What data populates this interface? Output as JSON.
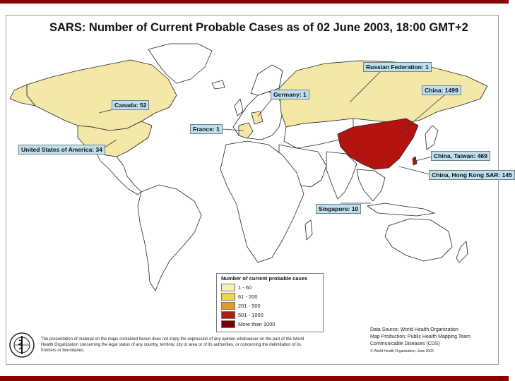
{
  "title": "SARS: Number of Current Probable Cases as of 02 June 2003, 18:00 GMT+2",
  "callouts": [
    {
      "name": "callout-russia",
      "label": "Russian Federation: 1"
    },
    {
      "name": "callout-china",
      "label": "China: 1499"
    },
    {
      "name": "callout-germany",
      "label": "Germany: 1"
    },
    {
      "name": "callout-canada",
      "label": "Canada: 52"
    },
    {
      "name": "callout-france",
      "label": "France: 1"
    },
    {
      "name": "callout-usa",
      "label": "United States of America: 34"
    },
    {
      "name": "callout-taiwan",
      "label": "China, Taiwan: 469"
    },
    {
      "name": "callout-hongkong",
      "label": "China, Hong Kong SAR: 145"
    },
    {
      "name": "callout-singapore",
      "label": "Singapore: 10"
    }
  ],
  "legend": {
    "title": "Number of current probable cases",
    "items": [
      {
        "label": "1 - 60",
        "color": "#f7f0b4"
      },
      {
        "label": "61 - 200",
        "color": "#f0d44a"
      },
      {
        "label": "201 - 500",
        "color": "#e09a2a"
      },
      {
        "label": "501 - 1000",
        "color": "#a82010"
      },
      {
        "label": "More than 1000",
        "color": "#7a0000"
      }
    ]
  },
  "colors": {
    "affected": "#f4e8a8",
    "china": "#b3140f",
    "land": "#ffffff",
    "ocean": "#ffffff",
    "band": "#8b0000"
  },
  "disclaimer": "The presentation of material on the maps contained herein does not imply the expression of any opinion whatsoever on the part of the World Health Organization concerning the legal status of any country, territory, city or area or of its authorities, or concerning the delimitation of its frontiers or boundaries.",
  "source": {
    "line1": "Data Source: World Health Organization",
    "line2": "Map Production: Public Health Mapping Team",
    "line3": "Communicable Diseases (CDS)",
    "line4": "© World Health Organization, June 2003"
  },
  "logo_icon": "who-emblem-icon"
}
